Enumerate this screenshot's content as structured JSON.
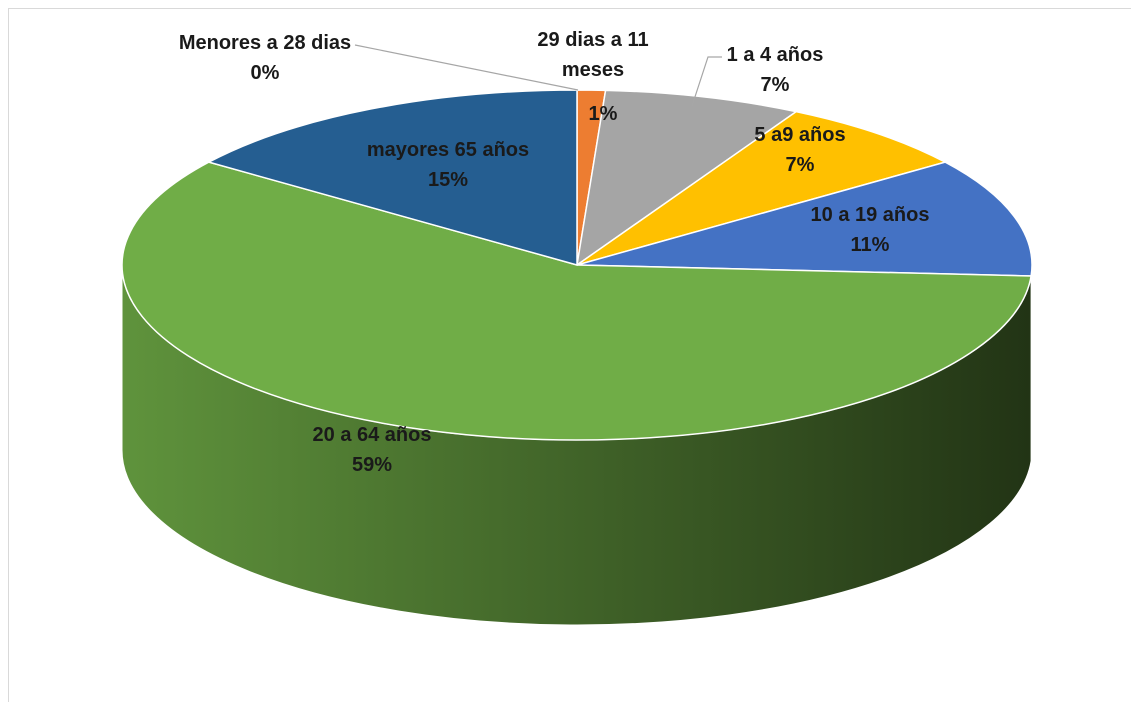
{
  "chart_data": {
    "type": "pie3d",
    "categories": [
      "Menores a 28 dias",
      "29 dias a 11 meses",
      "1 a 4 años",
      "5 a9 años",
      "10 a 19 años",
      "20 a 64 años",
      "mayores 65 años"
    ],
    "values": [
      0,
      1,
      7,
      7,
      11,
      59,
      15
    ],
    "value_labels": [
      "0%",
      "1%",
      "7%",
      "7%",
      "11%",
      "59%",
      "15%"
    ],
    "colors": [
      "#5b9bd5",
      "#ed7d31",
      "#a5a5a5",
      "#ffc000",
      "#4472c4",
      "#70ad47",
      "#255e91"
    ]
  }
}
